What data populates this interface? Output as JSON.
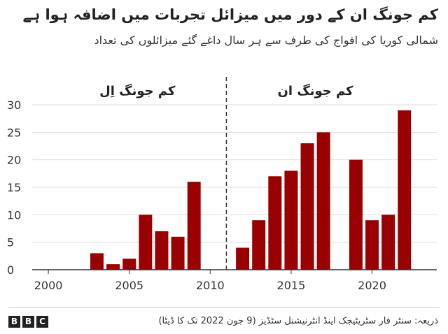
{
  "title": "کم جونگ ان کے دور میں میزائل تجربات میں اضافہ ہوا ہے",
  "subtitle": "شمالی کوریا کی افواج کی طرف سے ہر سال داغے گئے میزائلوں کی تعداد",
  "source": "ذریعہ: سنٹر فار سٹریٹیجک اینڈ انٹرنیشنل سٹڈیز (9 جون 2022 تک کا ڈیٹا)",
  "logo": [
    "B",
    "B",
    "C"
  ],
  "chart_data": {
    "type": "bar",
    "x": [
      2003,
      2004,
      2005,
      2006,
      2007,
      2008,
      2009,
      2012,
      2013,
      2014,
      2015,
      2016,
      2017,
      2019,
      2020,
      2021,
      2022
    ],
    "values": [
      3,
      1,
      2,
      10,
      7,
      6,
      16,
      4,
      9,
      17,
      18,
      23,
      25,
      20,
      9,
      10,
      29
    ],
    "xlim": [
      1999,
      2024
    ],
    "ylim": [
      0,
      30
    ],
    "xticks": [
      2000,
      2005,
      2010,
      2015,
      2020
    ],
    "yticks": [
      0,
      5,
      10,
      15,
      20,
      25,
      30
    ],
    "grid": "horizontal",
    "bar_color": "#990000",
    "divider_x": 2011,
    "era_labels": [
      {
        "text": "کم جونگ اِل",
        "at": 2005.5
      },
      {
        "text": "کم جونگ ان",
        "at": 2016.5
      }
    ]
  }
}
